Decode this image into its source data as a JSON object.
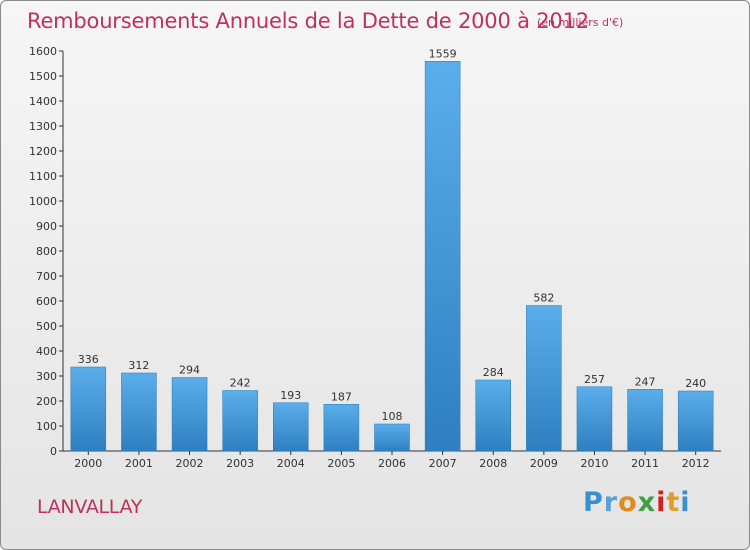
{
  "header": {
    "title": "Remboursements Annuels de la Dette de 2000 à 2012",
    "subtitle": "(en milliers d'€)"
  },
  "footer": {
    "commune": "LANVALLAY",
    "logo_letters": [
      {
        "ch": "P",
        "color": "#3a8fd0"
      },
      {
        "ch": "r",
        "color": "#5aa0d8"
      },
      {
        "ch": "o",
        "color": "#e08a20"
      },
      {
        "ch": "x",
        "color": "#3aa040"
      },
      {
        "ch": "i",
        "color": "#d02020"
      },
      {
        "ch": "t",
        "color": "#e0a020"
      },
      {
        "ch": "i",
        "color": "#3a8fd0"
      }
    ]
  },
  "chart_data": {
    "type": "bar",
    "title": "Remboursements Annuels de la Dette de 2000 à 2012",
    "subtitle": "(en milliers d'€)",
    "categories": [
      "2000",
      "2001",
      "2002",
      "2003",
      "2004",
      "2005",
      "2006",
      "2007",
      "2008",
      "2009",
      "2010",
      "2011",
      "2012"
    ],
    "values": [
      336,
      312,
      294,
      242,
      193,
      187,
      108,
      1559,
      284,
      582,
      257,
      247,
      240
    ],
    "ylim": [
      0,
      1600
    ],
    "yticks": [
      0,
      100,
      200,
      300,
      400,
      500,
      600,
      700,
      800,
      900,
      1000,
      1100,
      1200,
      1300,
      1400,
      1500,
      1600
    ],
    "grid": false,
    "bar_color": "#4a9fe0",
    "data_labels": true
  }
}
